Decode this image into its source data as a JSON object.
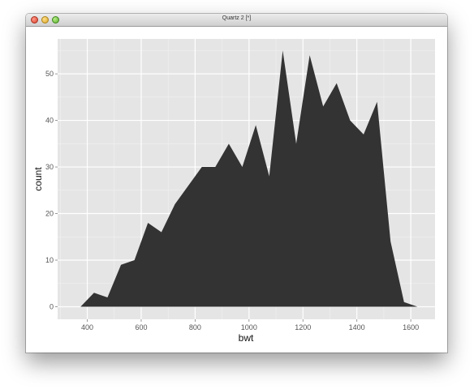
{
  "window": {
    "title": "Quartz 2 [*]"
  },
  "colors": {
    "panel_background": "#e5e5e5",
    "grid_major": "#ffffff",
    "grid_minor": "#f2f2f2",
    "area_fill": "#333333",
    "tick_label": "#555555"
  },
  "chart_data": {
    "type": "area",
    "xlabel": "bwt",
    "ylabel": "count",
    "xlim": [
      290,
      1690
    ],
    "ylim": [
      -2.7,
      57.5
    ],
    "x_ticks": [
      400,
      600,
      800,
      1000,
      1200,
      1400,
      1600
    ],
    "x_tick_labels": [
      "400",
      "600",
      "800",
      "1000",
      "1200",
      "1400",
      "1600"
    ],
    "y_ticks": [
      0,
      10,
      20,
      30,
      40,
      50
    ],
    "y_tick_labels": [
      "0",
      "10",
      "20",
      "30",
      "40",
      "50"
    ],
    "grid": true,
    "legend": "none",
    "series": [
      {
        "x": [
          375,
          425,
          475,
          525,
          575,
          625,
          675,
          725,
          775,
          825,
          875,
          925,
          975,
          1025,
          1075,
          1125,
          1175,
          1225,
          1275,
          1325,
          1375,
          1425,
          1475,
          1525,
          1575,
          1625
        ],
        "values": [
          0,
          3,
          2,
          9,
          10,
          18,
          16,
          22,
          26,
          30,
          30,
          35,
          30,
          39,
          28,
          55,
          35,
          54,
          43,
          48,
          40,
          37,
          44,
          14,
          1,
          0
        ]
      }
    ]
  }
}
